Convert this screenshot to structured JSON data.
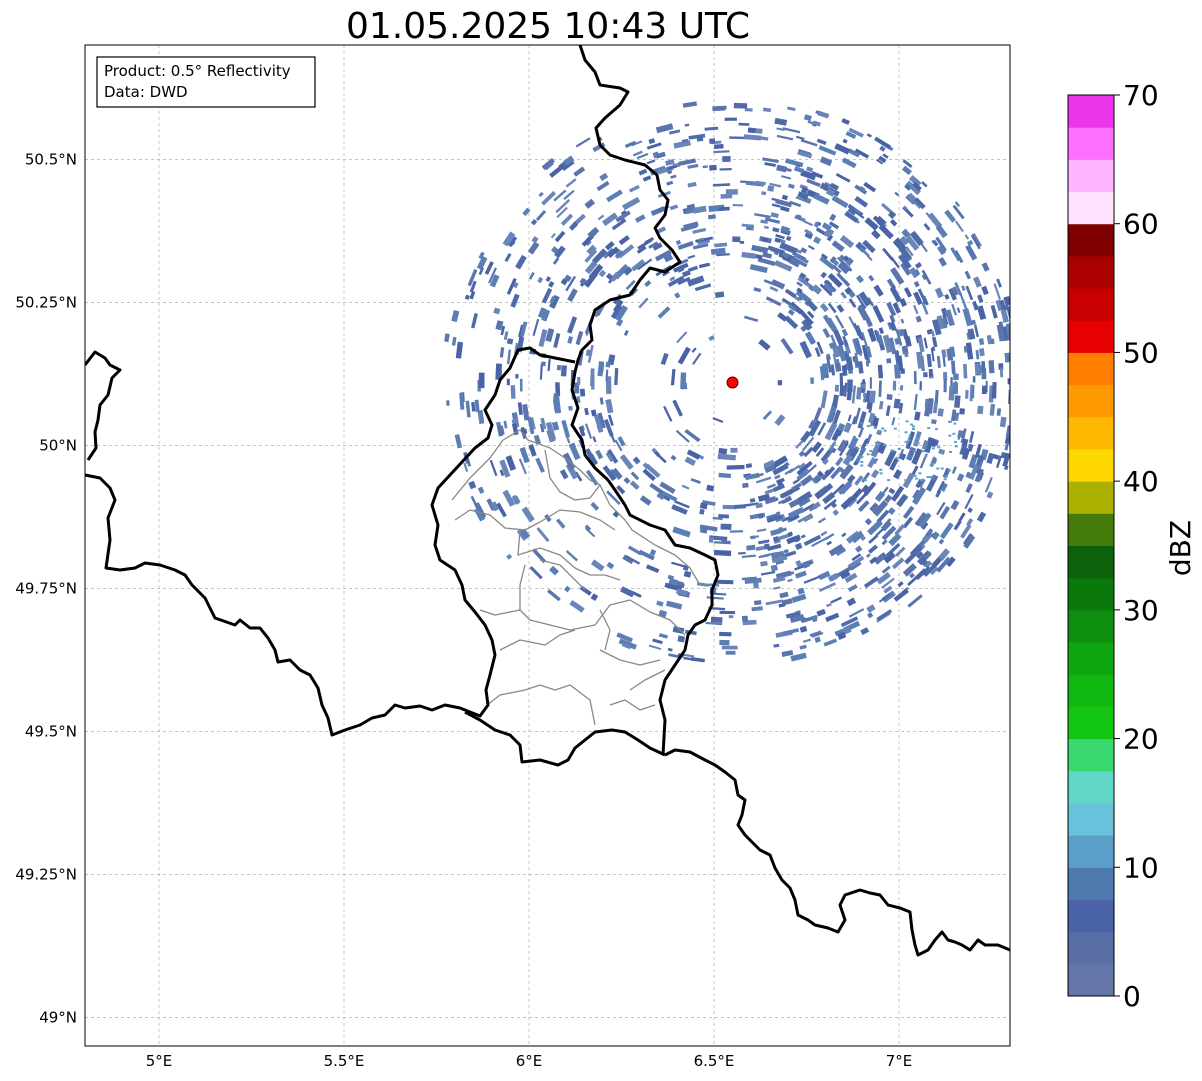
{
  "title": "01.05.2025 10:43 UTC",
  "info_box": {
    "product": "Product: 0.5° Reflectivity",
    "data": "Data: DWD"
  },
  "map": {
    "lon_range": [
      4.8,
      7.3
    ],
    "lat_range": [
      48.95,
      50.7
    ],
    "x_ticks": [
      {
        "value": 5.0,
        "label": "5°E"
      },
      {
        "value": 5.5,
        "label": "5.5°E"
      },
      {
        "value": 6.0,
        "label": "6°E"
      },
      {
        "value": 6.5,
        "label": "6.5°E"
      },
      {
        "value": 7.0,
        "label": "7°E"
      }
    ],
    "y_ticks": [
      {
        "value": 49.0,
        "label": "49°N"
      },
      {
        "value": 49.25,
        "label": "49.25°N"
      },
      {
        "value": 49.5,
        "label": "49.5°N"
      },
      {
        "value": 49.75,
        "label": "49.75°N"
      },
      {
        "value": 50.0,
        "label": "50°N"
      },
      {
        "value": 50.25,
        "label": "50.25°N"
      },
      {
        "value": 50.5,
        "label": "50.5°N"
      }
    ],
    "gridlines": true,
    "radar_site": {
      "lon": 6.55,
      "lat": 50.11,
      "color": "#ff0000"
    }
  },
  "colorbar": {
    "label": "dBZ",
    "min": 0,
    "max": 70,
    "ticks": [
      {
        "value": 0,
        "label": "0"
      },
      {
        "value": 10,
        "label": "10"
      },
      {
        "value": 20,
        "label": "20"
      },
      {
        "value": 30,
        "label": "30"
      },
      {
        "value": 40,
        "label": "40"
      },
      {
        "value": 50,
        "label": "50"
      },
      {
        "value": 60,
        "label": "60"
      },
      {
        "value": 70,
        "label": "70"
      }
    ],
    "colors": [
      "#6475a8",
      "#5a6ea6",
      "#4a62a6",
      "#4f7ab0",
      "#5b9ec9",
      "#68c2dc",
      "#62d7c8",
      "#3ad870",
      "#14c614",
      "#12b812",
      "#10a610",
      "#0e8e0e",
      "#0b780b",
      "#0b620b",
      "#457b09",
      "#acb000",
      "#ffd700",
      "#ffb800",
      "#ff9b00",
      "#ff7e00",
      "#e60000",
      "#c80000",
      "#aa0000",
      "#7e0000",
      "#ffe3ff",
      "#ffb5ff",
      "#ff70ff",
      "#ec36ec"
    ]
  }
}
